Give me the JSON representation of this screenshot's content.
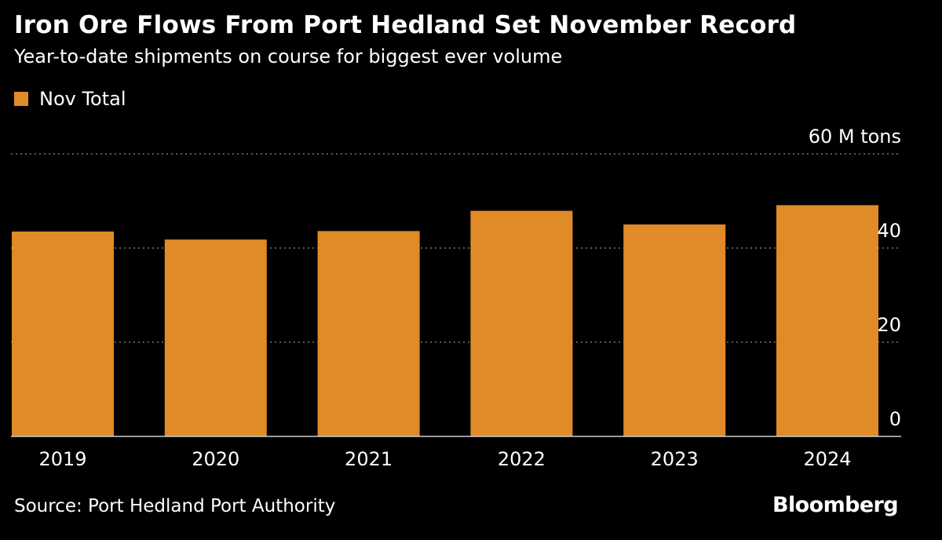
{
  "title": "Iron Ore Flows From Port Hedland Set November Record",
  "subtitle": "Year-to-date shipments on course for biggest ever volume",
  "source": "Source: Port Hedland Port Authority",
  "logo": "Bloomberg",
  "colors": {
    "background": "#000000",
    "bar": "#e08a28",
    "grid": "#777777",
    "text": "#ffffff"
  },
  "chart_data": {
    "type": "bar",
    "categories": [
      "2019",
      "2020",
      "2021",
      "2022",
      "2023",
      "2024"
    ],
    "series": [
      {
        "name": "Nov Total",
        "values": [
          43.5,
          41.8,
          43.6,
          47.9,
          45.0,
          49.1
        ]
      }
    ],
    "ylim": [
      0,
      60
    ],
    "yticks": [
      0,
      20,
      40,
      60
    ],
    "ytick_labels": [
      "0",
      "20",
      "40",
      "60 M tons"
    ],
    "grid": true,
    "legend": "top-left",
    "y_axis_position": "right"
  }
}
